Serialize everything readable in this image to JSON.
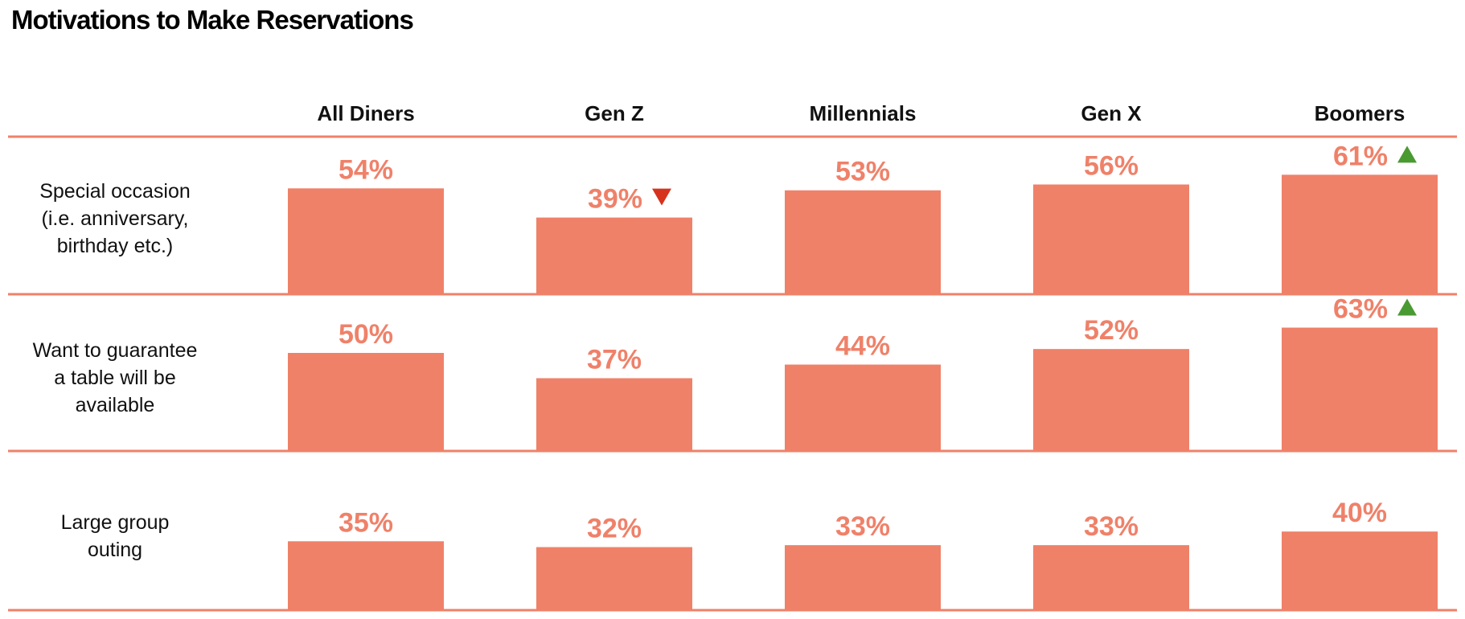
{
  "title": "Motivations to Make Reservations",
  "colors": {
    "bar": "#EF8169",
    "value_text": "#EF8169",
    "rule": "#EF8169",
    "up_marker": "#4A9A32",
    "down_marker": "#D7321E",
    "text": "#111111"
  },
  "chart_data": {
    "type": "bar",
    "layout": "small-multiples grid (rows x columns)",
    "categories": [
      "All Diners",
      "Gen Z",
      "Millennials",
      "Gen X",
      "Boomers"
    ],
    "series": [
      {
        "name": "Special occasion (i.e. anniversary, birthday etc.)",
        "label_lines": [
          "Special occasion",
          "(i.e. anniversary,",
          "birthday etc.)"
        ],
        "values": [
          54,
          39,
          53,
          56,
          61
        ],
        "value_labels": [
          "54%",
          "39%",
          "53%",
          "56%",
          "61%"
        ],
        "markers": [
          null,
          "down",
          null,
          null,
          "up"
        ]
      },
      {
        "name": "Want to guarantee a table will be available",
        "label_lines": [
          "Want to guarantee",
          "a table will be",
          "available"
        ],
        "values": [
          50,
          37,
          44,
          52,
          63
        ],
        "value_labels": [
          "50%",
          "37%",
          "44%",
          "52%",
          "63%"
        ],
        "markers": [
          null,
          null,
          null,
          null,
          "up"
        ]
      },
      {
        "name": "Large group outing",
        "label_lines": [
          "Large group",
          "outing"
        ],
        "values": [
          35,
          32,
          33,
          33,
          40
        ],
        "value_labels": [
          "35%",
          "32%",
          "33%",
          "33%",
          "40%"
        ],
        "markers": [
          null,
          null,
          null,
          null,
          null
        ]
      }
    ],
    "unit": "%",
    "ylim": [
      0,
      100
    ],
    "grid": false,
    "legend": "none"
  }
}
